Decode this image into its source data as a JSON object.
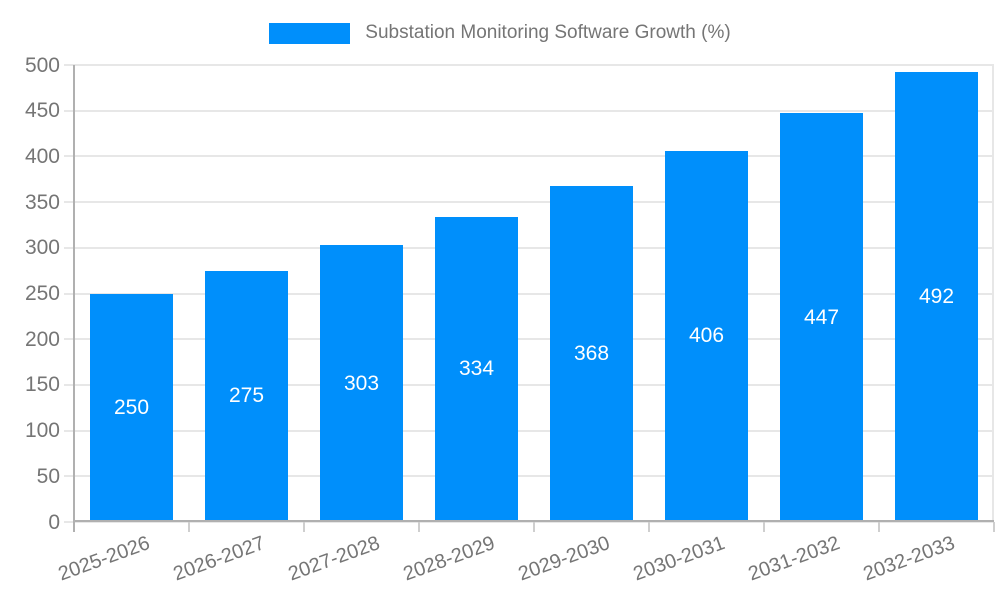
{
  "legend": {
    "label": "Substation Monitoring Software Growth (%)"
  },
  "chart_data": {
    "type": "bar",
    "title": "Substation Monitoring Software Growth (%)",
    "categories": [
      "2025-2026",
      "2026-2027",
      "2027-2028",
      "2028-2029",
      "2029-2030",
      "2030-2031",
      "2031-2032",
      "2032-2033"
    ],
    "series": [
      {
        "name": "Substation Monitoring Software Growth (%)",
        "values": [
          250,
          275,
          303,
          334,
          368,
          406,
          447,
          492
        ]
      }
    ],
    "data_labels": [
      250,
      275,
      303,
      334,
      368,
      406,
      447,
      492
    ],
    "xlabel": "",
    "ylabel": "",
    "ylim": [
      0,
      500
    ],
    "ytick_step": 50,
    "yticks": [
      0,
      50,
      100,
      150,
      200,
      250,
      300,
      350,
      400,
      450,
      500
    ],
    "grid": true,
    "legend_position": "top-center",
    "colors": {
      "bar": "#008ffb",
      "bar_label_text": "#ffffff",
      "axis_text": "#757575",
      "legend_text": "#757575",
      "gridline": "#e7e7e7",
      "axis_line": "#b0b0b0",
      "tick": "#cfcfcf",
      "background": "#ffffff"
    }
  }
}
